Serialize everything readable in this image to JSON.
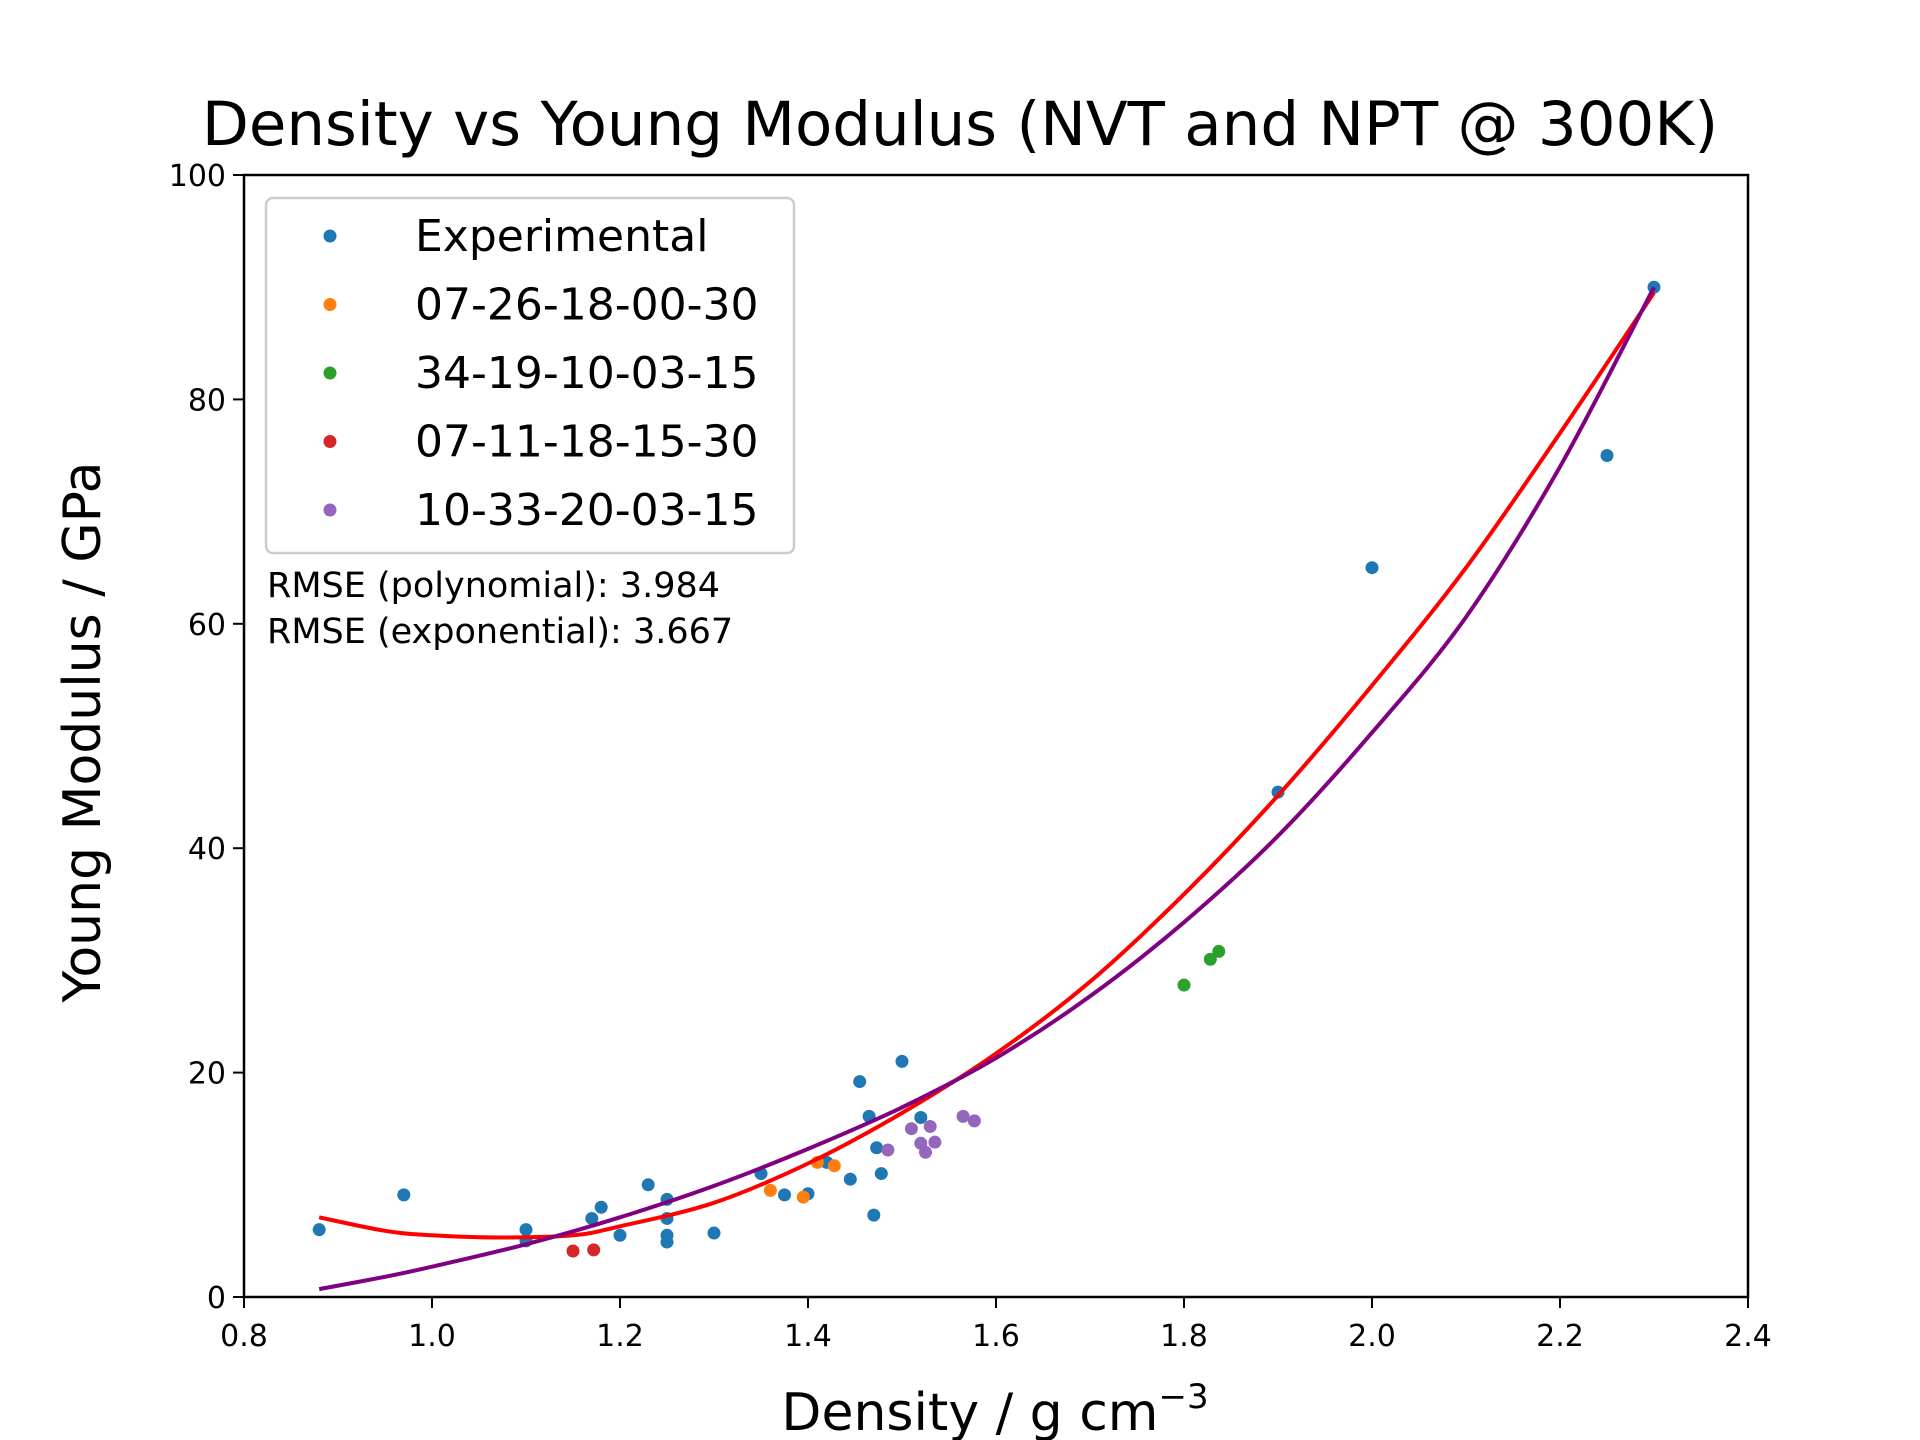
{
  "chart_data": {
    "type": "scatter",
    "title": "Density vs Young Modulus (NVT and NPT @ 300K)",
    "xlabel": "Density / g cm",
    "xlabel_superscript": "−3",
    "ylabel": "Young Modulus / GPa",
    "xlim": [
      0.8,
      2.4
    ],
    "ylim": [
      0,
      100
    ],
    "xticks": [
      "0.8",
      "1.0",
      "1.2",
      "1.4",
      "1.6",
      "1.8",
      "2.0",
      "2.2",
      "2.4"
    ],
    "yticks": [
      "0",
      "20",
      "40",
      "60",
      "80",
      "100"
    ],
    "grid": false,
    "legend_position": "top-left",
    "annotations": [
      "RMSE (polynomial): 3.984",
      "RMSE (exponential): 3.667"
    ],
    "series": [
      {
        "name": "Experimental",
        "color": "#1f77b4",
        "points": [
          [
            0.88,
            6.0
          ],
          [
            0.97,
            9.1
          ],
          [
            1.1,
            6.0
          ],
          [
            1.1,
            5.0
          ],
          [
            1.17,
            7.0
          ],
          [
            1.18,
            8.0
          ],
          [
            1.2,
            5.5
          ],
          [
            1.23,
            10.0
          ],
          [
            1.25,
            8.7
          ],
          [
            1.25,
            7.0
          ],
          [
            1.25,
            5.5
          ],
          [
            1.25,
            4.9
          ],
          [
            1.3,
            5.7
          ],
          [
            1.35,
            11.0
          ],
          [
            1.375,
            9.1
          ],
          [
            1.4,
            9.2
          ],
          [
            1.42,
            12.0
          ],
          [
            1.445,
            10.5
          ],
          [
            1.455,
            19.2
          ],
          [
            1.465,
            16.1
          ],
          [
            1.47,
            7.3
          ],
          [
            1.473,
            13.3
          ],
          [
            1.478,
            11.0
          ],
          [
            1.5,
            21.0
          ],
          [
            1.52,
            16.0
          ],
          [
            1.9,
            45.0
          ],
          [
            2.0,
            65.0
          ],
          [
            2.25,
            75.0
          ],
          [
            2.3,
            90.0
          ]
        ]
      },
      {
        "name": "07-26-18-00-30",
        "color": "#ff7f0e",
        "points": [
          [
            1.36,
            9.5
          ],
          [
            1.395,
            8.9
          ],
          [
            1.41,
            12.0
          ],
          [
            1.428,
            11.7
          ]
        ]
      },
      {
        "name": "34-19-10-03-15",
        "color": "#2ca02c",
        "points": [
          [
            1.8,
            27.8
          ],
          [
            1.828,
            30.1
          ],
          [
            1.837,
            30.8
          ]
        ]
      },
      {
        "name": "07-11-18-15-30",
        "color": "#d62728",
        "points": [
          [
            1.15,
            4.1
          ],
          [
            1.172,
            4.2
          ]
        ]
      },
      {
        "name": "10-33-20-03-15",
        "color": "#9467bd",
        "points": [
          [
            1.485,
            13.1
          ],
          [
            1.51,
            15.0
          ],
          [
            1.52,
            13.7
          ],
          [
            1.525,
            12.9
          ],
          [
            1.53,
            15.2
          ],
          [
            1.535,
            13.8
          ],
          [
            1.565,
            16.1
          ],
          [
            1.577,
            15.7
          ]
        ]
      }
    ],
    "fit_curves": [
      {
        "label": "polynomial",
        "color": "#ff0000",
        "points": [
          [
            0.88,
            7.1
          ],
          [
            0.95,
            5.9
          ],
          [
            1.0,
            5.5
          ],
          [
            1.07,
            5.3
          ],
          [
            1.15,
            5.5
          ],
          [
            1.2,
            6.3
          ],
          [
            1.3,
            8.4
          ],
          [
            1.4,
            11.9
          ],
          [
            1.5,
            16.4
          ],
          [
            1.6,
            21.7
          ],
          [
            1.7,
            28.1
          ],
          [
            1.8,
            35.9
          ],
          [
            1.9,
            44.7
          ],
          [
            2.0,
            54.5
          ],
          [
            2.1,
            65.0
          ],
          [
            2.2,
            77.0
          ],
          [
            2.3,
            89.5
          ]
        ]
      },
      {
        "label": "exponential",
        "color": "#800080",
        "points": [
          [
            0.88,
            0.7
          ],
          [
            0.95,
            1.8
          ],
          [
            1.0,
            2.7
          ],
          [
            1.1,
            4.7
          ],
          [
            1.2,
            7.1
          ],
          [
            1.3,
            9.9
          ],
          [
            1.4,
            13.2
          ],
          [
            1.5,
            16.9
          ],
          [
            1.6,
            21.3
          ],
          [
            1.7,
            26.8
          ],
          [
            1.8,
            33.4
          ],
          [
            1.9,
            41.1
          ],
          [
            2.0,
            50.3
          ],
          [
            2.1,
            60.6
          ],
          [
            2.2,
            74.0
          ],
          [
            2.3,
            90.0
          ]
        ]
      }
    ]
  }
}
